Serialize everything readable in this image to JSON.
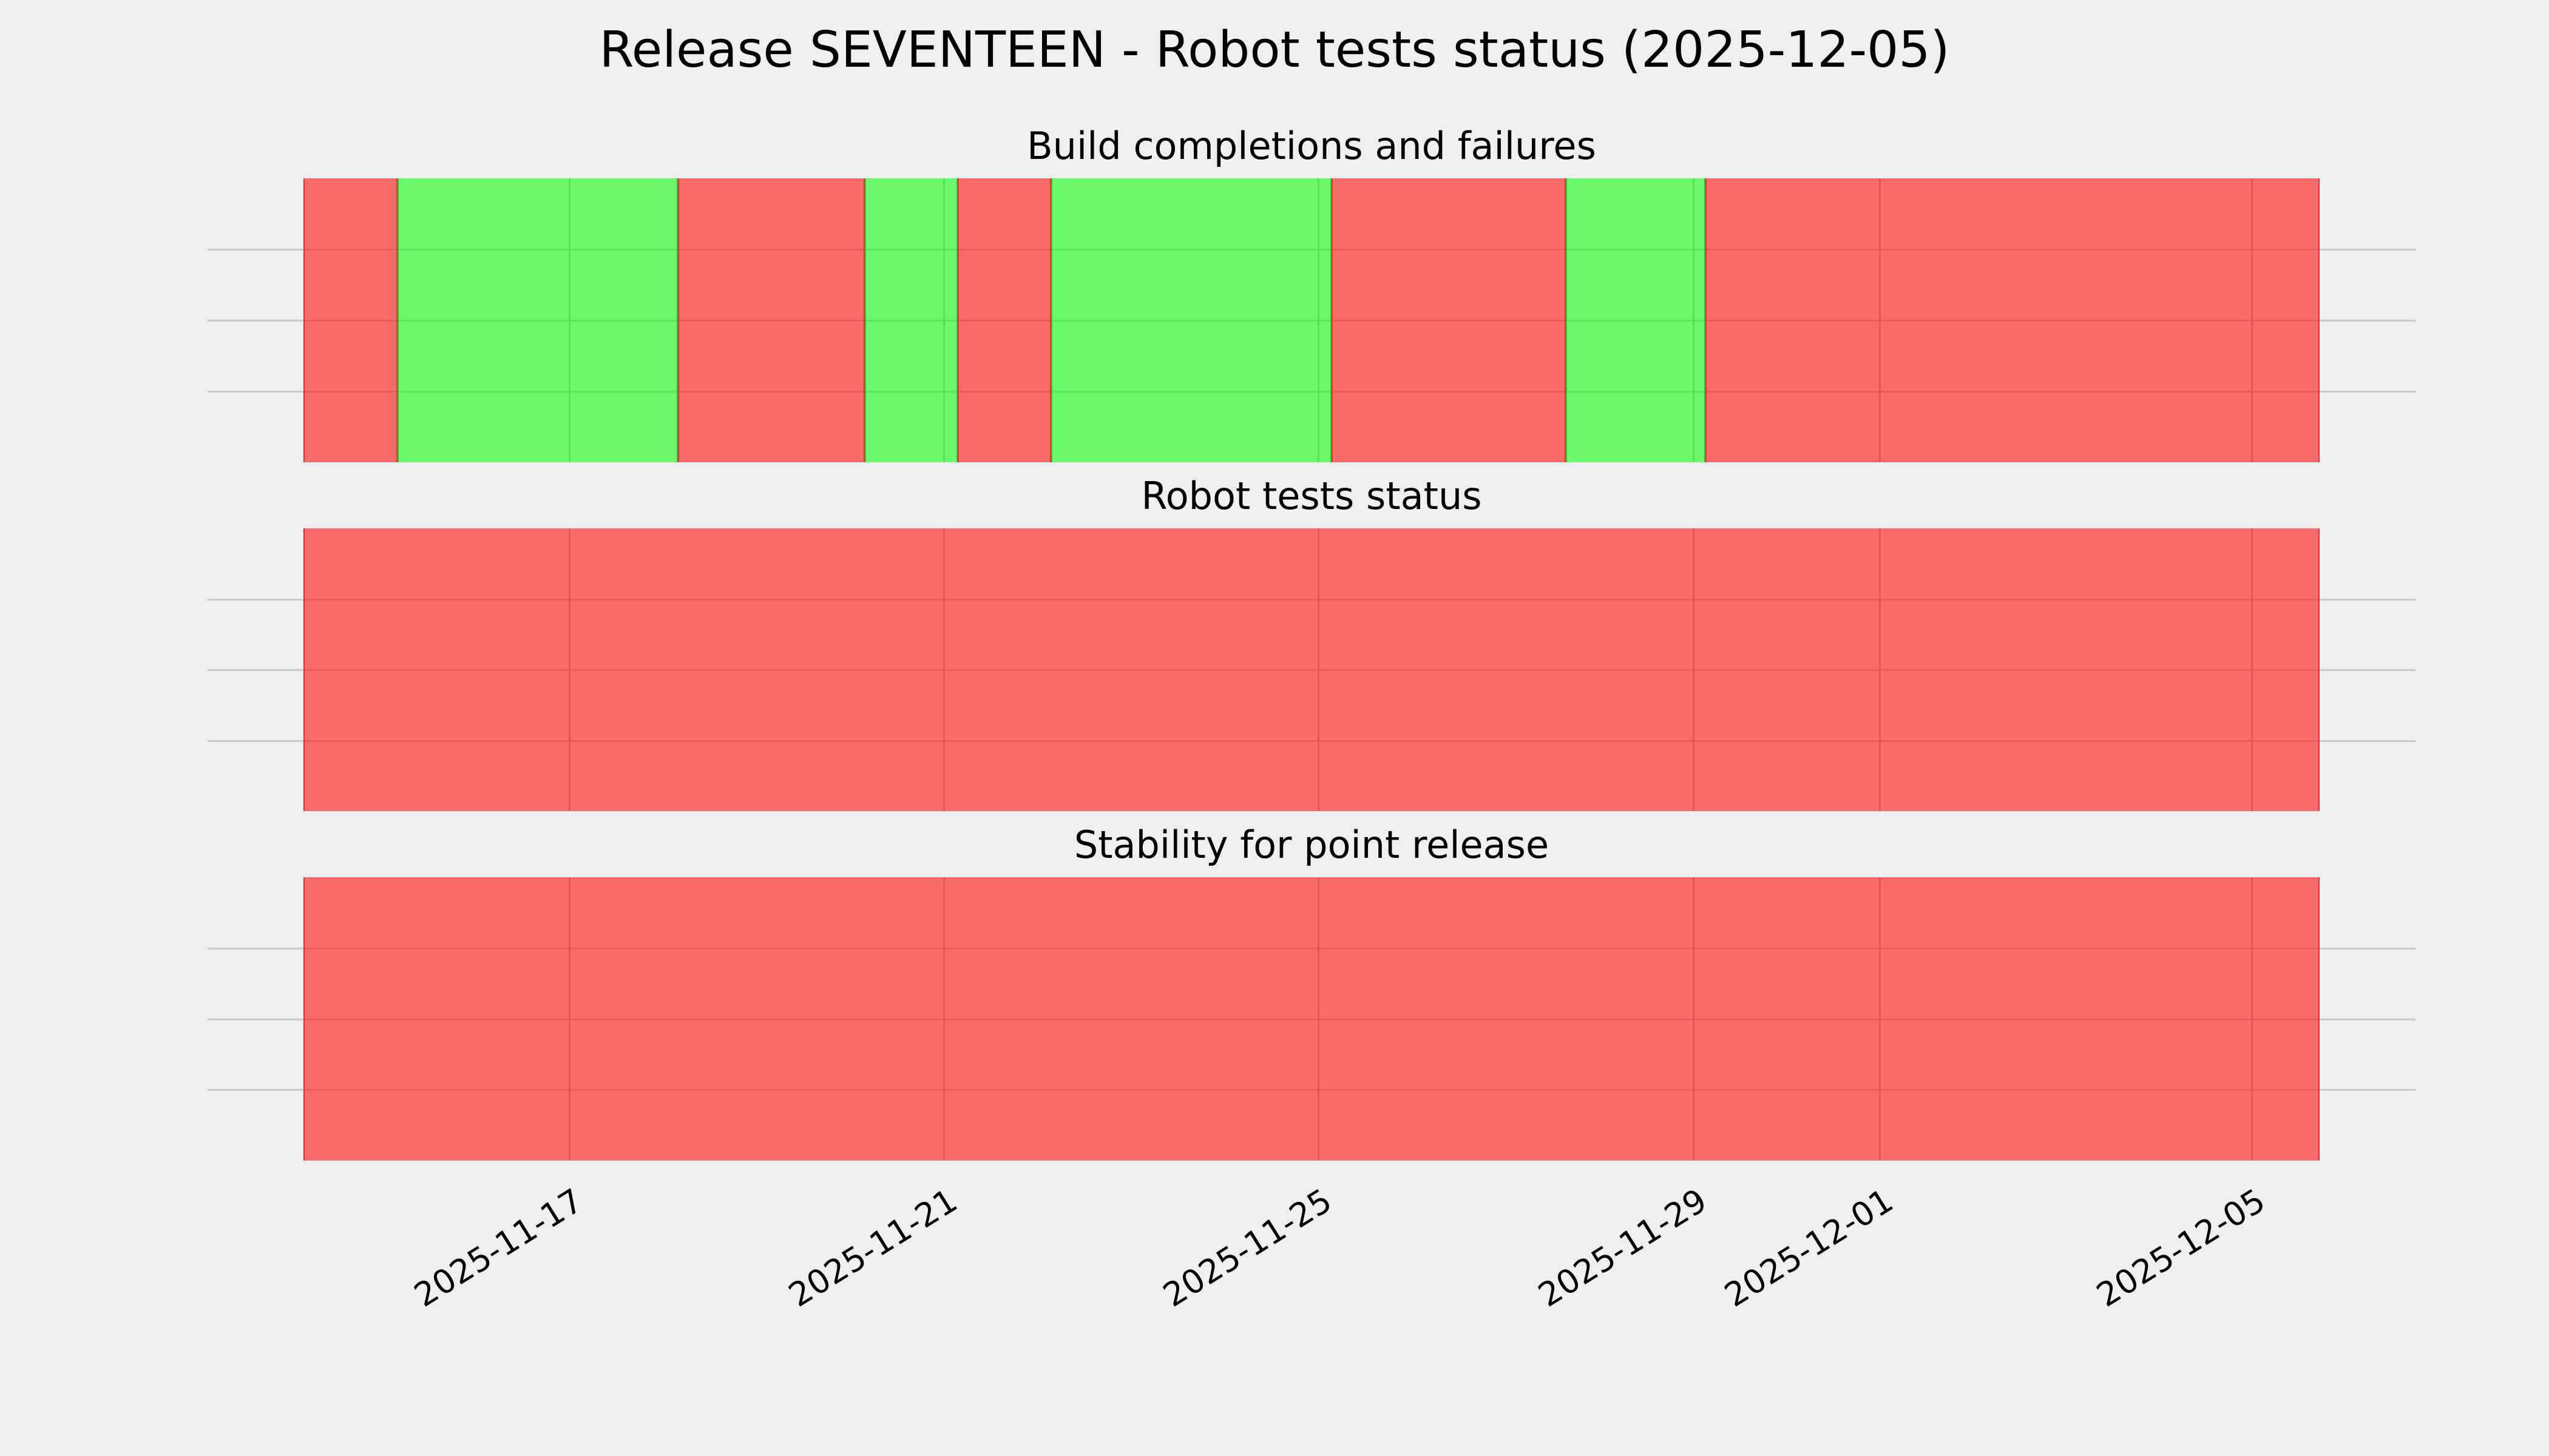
{
  "figure": {
    "title": "Release SEVENTEEN - Robot tests status (2025-12-05)",
    "background_color": "#efefef",
    "grid_color": "#c9c9c9",
    "pass_color": "#6ef16e",
    "fail_color": "#f77070",
    "legend": "none",
    "y_tick_labels": "none"
  },
  "x_axis": {
    "ticks": [
      {
        "label": "2025-11-17",
        "pos_pct": 13.18
      },
      {
        "label": "2025-11-21",
        "pos_pct": 31.76
      },
      {
        "label": "2025-11-25",
        "pos_pct": 50.33
      },
      {
        "label": "2025-11-29",
        "pos_pct": 68.93
      },
      {
        "label": "2025-12-01",
        "pos_pct": 78.17
      },
      {
        "label": "2025-12-05",
        "pos_pct": 96.63
      }
    ],
    "label_rotation_deg": 32,
    "range_start_approx": "2025-11-14 ~04:00",
    "range_end_approx": "2025-12-05 ~17:00"
  },
  "chart_data": [
    {
      "type": "status-timeline",
      "title": "Build completions and failures",
      "ylim": [
        0,
        4
      ],
      "grid": true,
      "segments": [
        {
          "status": "fail",
          "start": "2025-11-14",
          "end": "2025-11-15",
          "days": 1.0,
          "width_pct": 4.67
        },
        {
          "status": "pass",
          "start": "2025-11-15",
          "end": "2025-11-18",
          "days": 3.0,
          "width_pct": 13.91
        },
        {
          "status": "fail",
          "start": "2025-11-18",
          "end": "2025-11-20",
          "days": 2.0,
          "width_pct": 9.27
        },
        {
          "status": "pass",
          "start": "2025-11-20",
          "end": "2025-11-21",
          "days": 1.0,
          "width_pct": 4.61
        },
        {
          "status": "fail",
          "start": "2025-11-21",
          "end": "2025-11-22",
          "days": 1.0,
          "width_pct": 4.63
        },
        {
          "status": "pass",
          "start": "2025-11-22",
          "end": "2025-11-25",
          "days": 3.0,
          "width_pct": 13.91
        },
        {
          "status": "fail",
          "start": "2025-11-25",
          "end": "2025-11-27 ~16:00",
          "days": 2.5,
          "width_pct": 11.62
        },
        {
          "status": "pass",
          "start": "2025-11-27 ~16:00",
          "end": "2025-11-29",
          "days": 1.5,
          "width_pct": 6.92
        },
        {
          "status": "fail",
          "start": "2025-11-29",
          "end": "2025-12-05 ~17:00",
          "days": 6.6,
          "width_pct": 30.46
        }
      ]
    },
    {
      "type": "status-timeline",
      "title": "Robot tests status",
      "ylim": [
        0,
        4
      ],
      "grid": true,
      "segments": [
        {
          "status": "fail",
          "start": "2025-11-14",
          "end": "2025-12-05 ~17:00",
          "days": 21.6,
          "width_pct": 100.0
        }
      ]
    },
    {
      "type": "status-timeline",
      "title": "Stability for point release",
      "ylim": [
        0,
        4
      ],
      "grid": true,
      "segments": [
        {
          "status": "fail",
          "start": "2025-11-14",
          "end": "2025-12-05 ~17:00",
          "days": 21.6,
          "width_pct": 100.0
        }
      ]
    }
  ]
}
